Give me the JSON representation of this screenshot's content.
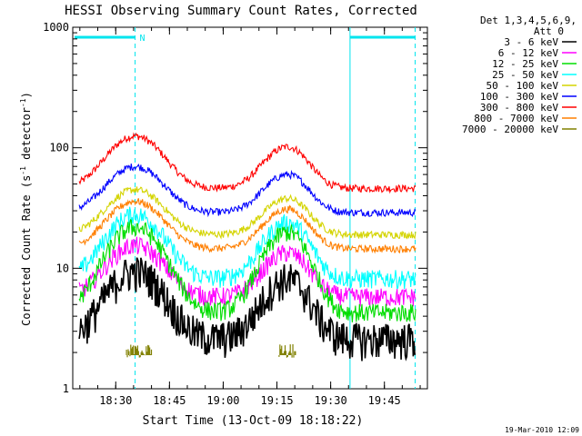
{
  "chart_data": {
    "type": "line",
    "title": "HESSI Observing Summary Count Rates, Corrected",
    "xlabel": "Start Time (13-Oct-09 18:18:22)",
    "ylabel_main": "Corrected Count Rate (s",
    "ylabel_sup1": "-1",
    "ylabel_mid": " detector",
    "ylabel_sup2": "-1",
    "ylabel_end": ")",
    "y_scale": "log",
    "ylim": [
      1,
      1000
    ],
    "xlim_minutes": [
      18.3,
      19.95
    ],
    "x_tick_labels": [
      "18:30",
      "18:45",
      "19:00",
      "19:15",
      "19:30",
      "19:45"
    ],
    "x_ticks_hours": [
      18.5,
      18.75,
      19.0,
      19.25,
      19.5,
      19.75
    ],
    "y_tick_labels": [
      "1",
      "10",
      "100",
      "1000"
    ],
    "y_ticks": [
      1,
      10,
      100,
      1000
    ],
    "legend_header_1": "Det 1,3,4,5,6,9,",
    "legend_header_2": "Att 0",
    "legend_placement": "right",
    "timestamp": "19-Mar-2010 12:09",
    "flag_label": "N",
    "night_intervals_hours": [
      [
        18.3,
        18.59
      ],
      [
        19.59,
        19.893
      ]
    ],
    "saa_marker_hours": [
      18.59,
      19.893
    ],
    "series": [
      {
        "name": "3 - 6 keV",
        "color": "#000000",
        "baseline": 2.6,
        "peak1": 9.5,
        "peak2": 8.2
      },
      {
        "name": "6 - 12 keV",
        "color": "#ff00ff",
        "baseline": 5.8,
        "peak1": 15.5,
        "peak2": 13.5
      },
      {
        "name": "12 - 25 keV",
        "color": "#00dd00",
        "baseline": 4.3,
        "peak1": 22,
        "peak2": 20
      },
      {
        "name": "25 - 50 keV",
        "color": "#00ffff",
        "baseline": 8.2,
        "peak1": 28,
        "peak2": 24
      },
      {
        "name": "50 - 100 keV",
        "color": "#d4d400",
        "baseline": 19,
        "peak1": 45,
        "peak2": 38
      },
      {
        "name": "100 - 300 keV",
        "color": "#0000ff",
        "baseline": 29,
        "peak1": 70,
        "peak2": 60
      },
      {
        "name": "300 - 800 keV",
        "color": "#ff0000",
        "baseline": 46,
        "peak1": 125,
        "peak2": 102
      },
      {
        "name": "800 - 7000 keV",
        "color": "#ff7f00",
        "baseline": 14.5,
        "peak1": 36,
        "peak2": 31
      },
      {
        "name": "7000 - 20000 keV",
        "color": "#808000",
        "baseline": 1,
        "peak1": 2.4,
        "peak2": 2.0
      }
    ]
  }
}
